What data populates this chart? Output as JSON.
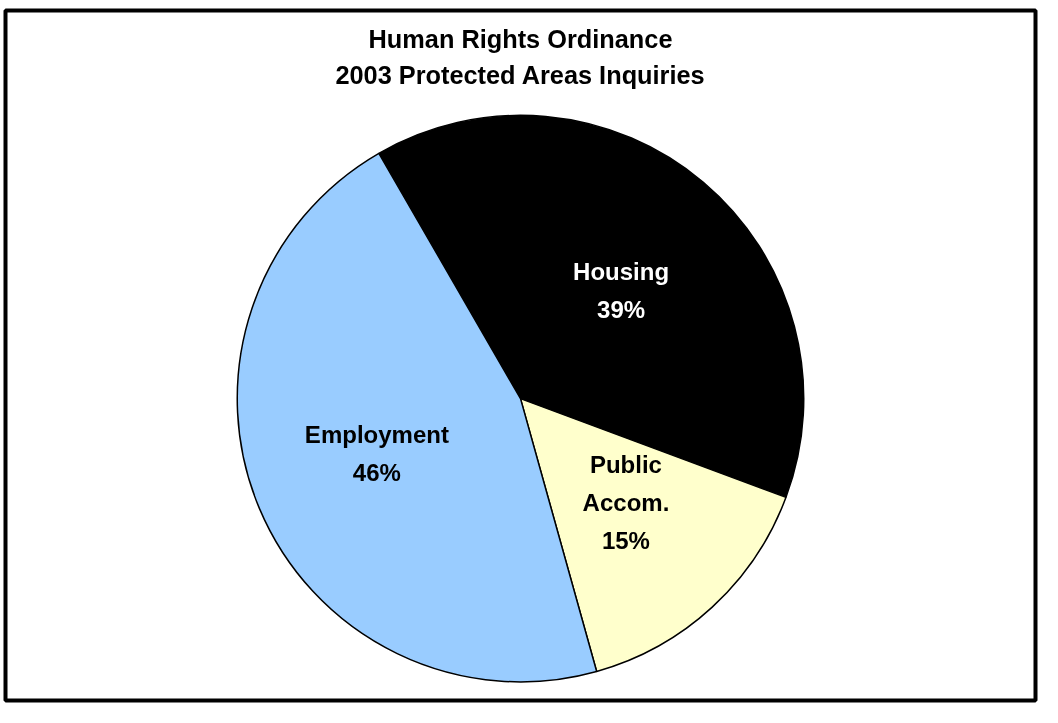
{
  "chart_data": {
    "type": "pie",
    "title": "Human Rights Ordinance\n2003 Protected Areas Inquiries",
    "categories": [
      "Housing",
      "Public Accom.",
      "Employment"
    ],
    "values": [
      39,
      15,
      46
    ],
    "colors": [
      "#000000",
      "#ffffcc",
      "#99ccff"
    ],
    "value_labels": [
      "39%",
      "15%",
      "46%"
    ]
  }
}
